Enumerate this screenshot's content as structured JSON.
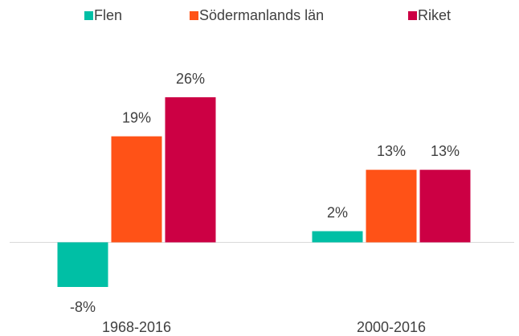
{
  "chart_data": {
    "type": "bar",
    "categories": [
      "1968-2016",
      "2000-2016"
    ],
    "series": [
      {
        "name": "Flen",
        "color": "#00bfa5",
        "values": [
          -8,
          2
        ],
        "value_labels": [
          "-8%",
          "2%"
        ]
      },
      {
        "name": "Södermanlands län",
        "color": "#ff5217",
        "values": [
          19,
          13
        ],
        "value_labels": [
          "19%",
          "13%"
        ]
      },
      {
        "name": "Riket",
        "color": "#cc0044",
        "values": [
          26,
          13
        ],
        "value_labels": [
          "26%",
          "13%"
        ]
      }
    ],
    "legend": "top"
  }
}
